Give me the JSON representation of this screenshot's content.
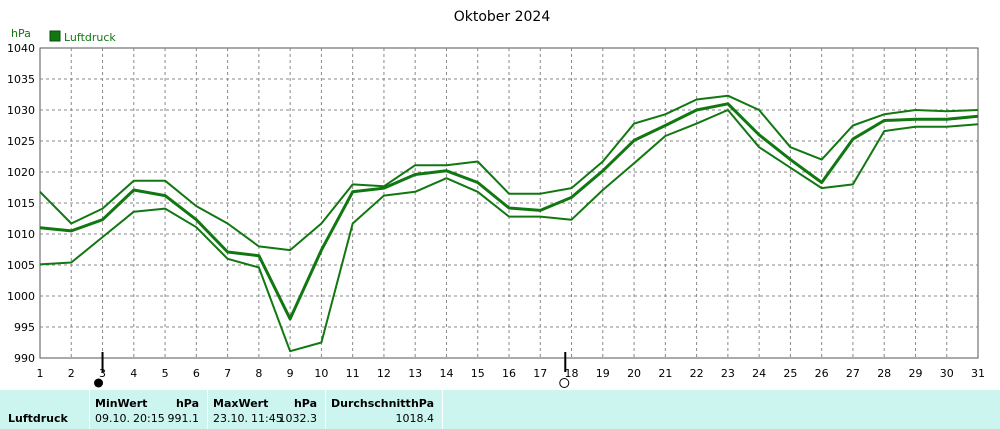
{
  "chart_data": {
    "type": "line",
    "title": "Oktober 2024",
    "ylabel": "hPa",
    "legend": {
      "label": "Luftdruck",
      "placement": "top-left",
      "color": "#117711"
    },
    "x": [
      1,
      2,
      3,
      4,
      5,
      6,
      7,
      8,
      9,
      10,
      11,
      12,
      13,
      14,
      15,
      16,
      17,
      18,
      19,
      20,
      21,
      22,
      23,
      24,
      25,
      26,
      27,
      28,
      29,
      30,
      31
    ],
    "xlim": [
      1,
      31
    ],
    "ylim": [
      990,
      1040
    ],
    "yticks": [
      990,
      995,
      1000,
      1005,
      1010,
      1015,
      1020,
      1025,
      1030,
      1035,
      1040
    ],
    "grid": true,
    "series": [
      {
        "role": "max",
        "values": [
          1016.8,
          1011.7,
          1014.1,
          1018.6,
          1018.6,
          1014.5,
          1011.7,
          1008.0,
          1007.4,
          1011.7,
          1018.0,
          1017.7,
          1021.1,
          1021.1,
          1021.7,
          1016.5,
          1016.5,
          1017.4,
          1021.7,
          1027.8,
          1029.3,
          1031.7,
          1032.3,
          1030.0,
          1024.0,
          1022.0,
          1027.5,
          1029.3,
          1030.0,
          1029.8,
          1030.0
        ]
      },
      {
        "role": "average",
        "values": [
          1011.0,
          1010.5,
          1012.3,
          1017.1,
          1016.2,
          1012.3,
          1007.1,
          1006.5,
          996.3,
          1007.4,
          1016.8,
          1017.4,
          1019.6,
          1020.2,
          1018.3,
          1014.2,
          1013.8,
          1015.9,
          1020.2,
          1025.1,
          1027.5,
          1030.0,
          1031.0,
          1026.0,
          1022.0,
          1018.3,
          1025.3,
          1028.3,
          1028.5,
          1028.5,
          1029.0
        ]
      },
      {
        "role": "min",
        "values": [
          1005.1,
          1005.4,
          1009.5,
          1013.6,
          1014.1,
          1011.1,
          1006.0,
          1004.6,
          991.1,
          992.5,
          1011.7,
          1016.2,
          1016.8,
          1019.0,
          1016.8,
          1012.8,
          1012.8,
          1012.3,
          1017.1,
          1021.4,
          1025.8,
          1027.8,
          1030.0,
          1024.0,
          1020.7,
          1017.4,
          1018.0,
          1026.6,
          1027.3,
          1027.3,
          1027.7
        ]
      }
    ],
    "markers": [
      {
        "x": 3,
        "symbol": "filled-circle"
      },
      {
        "x": 17.8,
        "symbol": "hollow-circle"
      }
    ]
  },
  "stats": {
    "label": "Luftdruck",
    "min": {
      "title": "MinWert",
      "unit": "hPa",
      "date": "09.10.",
      "time": "20:15",
      "value": "991.1"
    },
    "max": {
      "title": "MaxWert",
      "unit": "hPa",
      "date": "23.10.",
      "time": "11:45",
      "value": "1032.3"
    },
    "avg": {
      "title": "Durchschnitt",
      "unit": "hPa",
      "value": "1018.4"
    }
  }
}
